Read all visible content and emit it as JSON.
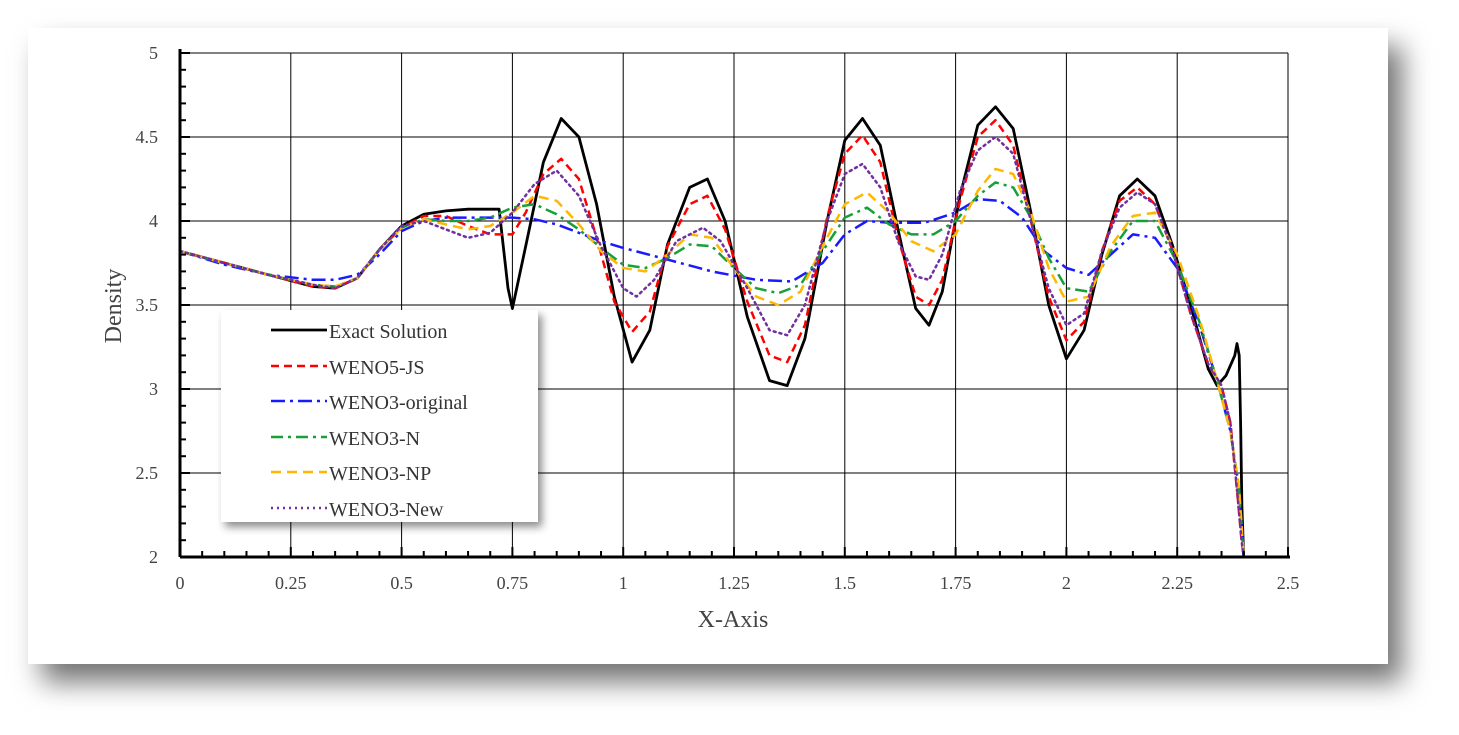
{
  "chart_data": {
    "type": "line",
    "title": "",
    "xlabel": "X-Axis",
    "ylabel": "Density",
    "xlim": [
      0,
      2.5
    ],
    "ylim": [
      2,
      5
    ],
    "x_ticks": [
      "0",
      "0.25",
      "0.5",
      "0.75",
      "1",
      "1.25",
      "1.5",
      "1.75",
      "2",
      "2.25",
      "2.5"
    ],
    "y_ticks": [
      "2",
      "2.5",
      "3",
      "3.5",
      "4",
      "4.5",
      "5"
    ],
    "grid": true,
    "legend_position": "lower-left",
    "series": [
      {
        "name": "Exact Solution",
        "color": "#000000",
        "dash": "solid",
        "width": 2.8,
        "x": [
          0,
          0.1,
          0.2,
          0.3,
          0.35,
          0.4,
          0.45,
          0.5,
          0.55,
          0.6,
          0.65,
          0.7,
          0.72,
          0.74,
          0.75,
          0.78,
          0.82,
          0.86,
          0.9,
          0.94,
          0.98,
          1.02,
          1.06,
          1.1,
          1.15,
          1.19,
          1.23,
          1.28,
          1.33,
          1.37,
          1.41,
          1.46,
          1.5,
          1.54,
          1.58,
          1.62,
          1.66,
          1.69,
          1.72,
          1.76,
          1.8,
          1.84,
          1.88,
          1.92,
          1.96,
          2.0,
          2.04,
          2.08,
          2.12,
          2.16,
          2.2,
          2.24,
          2.28,
          2.32,
          2.34,
          2.36,
          2.38,
          2.385,
          2.39,
          2.393,
          2.396,
          2.4
        ],
        "y": [
          3.82,
          3.75,
          3.68,
          3.61,
          3.6,
          3.66,
          3.83,
          3.97,
          4.04,
          4.06,
          4.07,
          4.07,
          4.07,
          3.6,
          3.48,
          3.85,
          4.35,
          4.61,
          4.5,
          4.1,
          3.55,
          3.16,
          3.35,
          3.86,
          4.2,
          4.25,
          4.0,
          3.43,
          3.05,
          3.02,
          3.3,
          4.0,
          4.48,
          4.61,
          4.45,
          3.95,
          3.48,
          3.38,
          3.58,
          4.15,
          4.57,
          4.68,
          4.55,
          4.05,
          3.5,
          3.18,
          3.35,
          3.8,
          4.15,
          4.25,
          4.15,
          3.85,
          3.5,
          3.12,
          3.02,
          3.08,
          3.2,
          3.27,
          3.2,
          2.8,
          2.3,
          2.0
        ]
      },
      {
        "name": "WENO5-JS",
        "color": "#ff0000",
        "dash": "8,5",
        "width": 2.5,
        "x": [
          0,
          0.1,
          0.2,
          0.3,
          0.35,
          0.4,
          0.45,
          0.5,
          0.55,
          0.6,
          0.65,
          0.7,
          0.75,
          0.78,
          0.82,
          0.86,
          0.9,
          0.94,
          0.98,
          1.02,
          1.06,
          1.1,
          1.15,
          1.19,
          1.23,
          1.28,
          1.33,
          1.37,
          1.41,
          1.46,
          1.5,
          1.54,
          1.58,
          1.62,
          1.66,
          1.69,
          1.72,
          1.76,
          1.8,
          1.84,
          1.88,
          1.92,
          1.96,
          2.0,
          2.04,
          2.08,
          2.12,
          2.16,
          2.2,
          2.24,
          2.28,
          2.32,
          2.35,
          2.37,
          2.385,
          2.395,
          2.4
        ],
        "y": [
          3.82,
          3.75,
          3.68,
          3.61,
          3.6,
          3.66,
          3.83,
          3.96,
          4.03,
          4.03,
          3.97,
          3.92,
          3.92,
          4.05,
          4.28,
          4.37,
          4.25,
          3.9,
          3.52,
          3.34,
          3.46,
          3.85,
          4.1,
          4.15,
          3.95,
          3.52,
          3.2,
          3.16,
          3.38,
          4.02,
          4.4,
          4.51,
          4.35,
          3.9,
          3.55,
          3.5,
          3.65,
          4.12,
          4.5,
          4.6,
          4.45,
          4.0,
          3.55,
          3.29,
          3.4,
          3.82,
          4.12,
          4.2,
          4.1,
          3.82,
          3.45,
          3.15,
          3.02,
          2.8,
          2.4,
          2.1,
          2.0
        ]
      },
      {
        "name": "WENO3-original",
        "color": "#1a1aff",
        "dash": "14,5,3,5",
        "width": 2.5,
        "x": [
          0,
          0.1,
          0.2,
          0.3,
          0.35,
          0.4,
          0.45,
          0.5,
          0.55,
          0.6,
          0.7,
          0.75,
          0.8,
          0.85,
          0.9,
          0.95,
          1.0,
          1.1,
          1.2,
          1.3,
          1.38,
          1.45,
          1.5,
          1.55,
          1.6,
          1.68,
          1.75,
          1.8,
          1.85,
          1.9,
          1.95,
          2.0,
          2.05,
          2.1,
          2.15,
          2.2,
          2.25,
          2.3,
          2.34,
          2.37,
          2.39,
          2.4
        ],
        "y": [
          3.82,
          3.74,
          3.68,
          3.65,
          3.65,
          3.68,
          3.8,
          3.94,
          4.0,
          4.02,
          4.02,
          4.02,
          4.01,
          3.98,
          3.93,
          3.88,
          3.84,
          3.77,
          3.7,
          3.65,
          3.64,
          3.75,
          3.92,
          4.0,
          3.99,
          3.99,
          4.05,
          4.13,
          4.12,
          4.02,
          3.82,
          3.72,
          3.68,
          3.8,
          3.92,
          3.9,
          3.72,
          3.38,
          3.05,
          2.75,
          2.4,
          2.0
        ]
      },
      {
        "name": "WENO3-N",
        "color": "#18a038",
        "dash": "12,5,3,5",
        "width": 2.5,
        "x": [
          0,
          0.1,
          0.2,
          0.3,
          0.35,
          0.4,
          0.45,
          0.5,
          0.55,
          0.6,
          0.65,
          0.7,
          0.75,
          0.8,
          0.85,
          0.9,
          0.95,
          1.0,
          1.05,
          1.1,
          1.15,
          1.2,
          1.25,
          1.3,
          1.35,
          1.4,
          1.45,
          1.5,
          1.55,
          1.6,
          1.65,
          1.7,
          1.75,
          1.8,
          1.84,
          1.88,
          1.92,
          1.96,
          2.0,
          2.05,
          2.1,
          2.15,
          2.2,
          2.25,
          2.3,
          2.34,
          2.37,
          2.39,
          2.4
        ],
        "y": [
          3.82,
          3.75,
          3.68,
          3.62,
          3.61,
          3.66,
          3.83,
          3.96,
          4.01,
          4.0,
          4.0,
          4.02,
          4.08,
          4.1,
          4.04,
          3.95,
          3.84,
          3.74,
          3.72,
          3.78,
          3.86,
          3.85,
          3.72,
          3.6,
          3.57,
          3.62,
          3.82,
          4.02,
          4.08,
          3.98,
          3.92,
          3.92,
          4.0,
          4.15,
          4.23,
          4.2,
          4.02,
          3.78,
          3.6,
          3.58,
          3.82,
          4.0,
          4.0,
          3.75,
          3.4,
          3.05,
          2.75,
          2.4,
          2.0
        ]
      },
      {
        "name": "WENO3-NP",
        "color": "#ffb800",
        "dash": "10,6",
        "width": 2.5,
        "x": [
          0,
          0.1,
          0.2,
          0.3,
          0.35,
          0.4,
          0.45,
          0.5,
          0.55,
          0.6,
          0.65,
          0.7,
          0.75,
          0.8,
          0.85,
          0.9,
          0.95,
          1.0,
          1.05,
          1.1,
          1.15,
          1.2,
          1.25,
          1.3,
          1.35,
          1.4,
          1.45,
          1.5,
          1.55,
          1.6,
          1.65,
          1.7,
          1.75,
          1.8,
          1.84,
          1.88,
          1.92,
          1.96,
          2.0,
          2.05,
          2.1,
          2.15,
          2.2,
          2.25,
          2.3,
          2.34,
          2.37,
          2.39,
          2.4
        ],
        "y": [
          3.82,
          3.75,
          3.68,
          3.62,
          3.61,
          3.66,
          3.83,
          3.96,
          4.01,
          3.98,
          3.95,
          3.97,
          4.05,
          4.15,
          4.12,
          3.98,
          3.82,
          3.72,
          3.7,
          3.8,
          3.92,
          3.9,
          3.72,
          3.55,
          3.5,
          3.58,
          3.85,
          4.1,
          4.17,
          4.05,
          3.88,
          3.82,
          3.92,
          4.18,
          4.31,
          4.28,
          4.05,
          3.72,
          3.52,
          3.55,
          3.85,
          4.03,
          4.05,
          3.8,
          3.42,
          3.05,
          2.75,
          2.4,
          2.0
        ]
      },
      {
        "name": "WENO3-New",
        "color": "#7030a0",
        "dash": "2,4",
        "width": 2.5,
        "x": [
          0,
          0.1,
          0.2,
          0.3,
          0.35,
          0.4,
          0.45,
          0.5,
          0.55,
          0.6,
          0.65,
          0.7,
          0.75,
          0.8,
          0.85,
          0.9,
          0.95,
          1.0,
          1.03,
          1.07,
          1.12,
          1.18,
          1.22,
          1.28,
          1.33,
          1.37,
          1.41,
          1.46,
          1.5,
          1.54,
          1.58,
          1.62,
          1.66,
          1.69,
          1.72,
          1.76,
          1.8,
          1.84,
          1.88,
          1.92,
          1.96,
          2.0,
          2.04,
          2.08,
          2.12,
          2.16,
          2.2,
          2.24,
          2.28,
          2.32,
          2.35,
          2.37,
          2.385,
          2.395,
          2.4
        ],
        "y": [
          3.82,
          3.75,
          3.68,
          3.62,
          3.6,
          3.66,
          3.83,
          3.97,
          4.0,
          3.95,
          3.9,
          3.93,
          4.05,
          4.22,
          4.3,
          4.15,
          3.85,
          3.6,
          3.55,
          3.65,
          3.88,
          3.96,
          3.88,
          3.6,
          3.35,
          3.32,
          3.5,
          4.0,
          4.28,
          4.34,
          4.2,
          3.88,
          3.67,
          3.65,
          3.8,
          4.18,
          4.42,
          4.5,
          4.4,
          4.0,
          3.6,
          3.38,
          3.45,
          3.82,
          4.08,
          4.17,
          4.1,
          3.82,
          3.45,
          3.15,
          3.02,
          2.8,
          2.4,
          2.1,
          2.0
        ]
      }
    ]
  }
}
